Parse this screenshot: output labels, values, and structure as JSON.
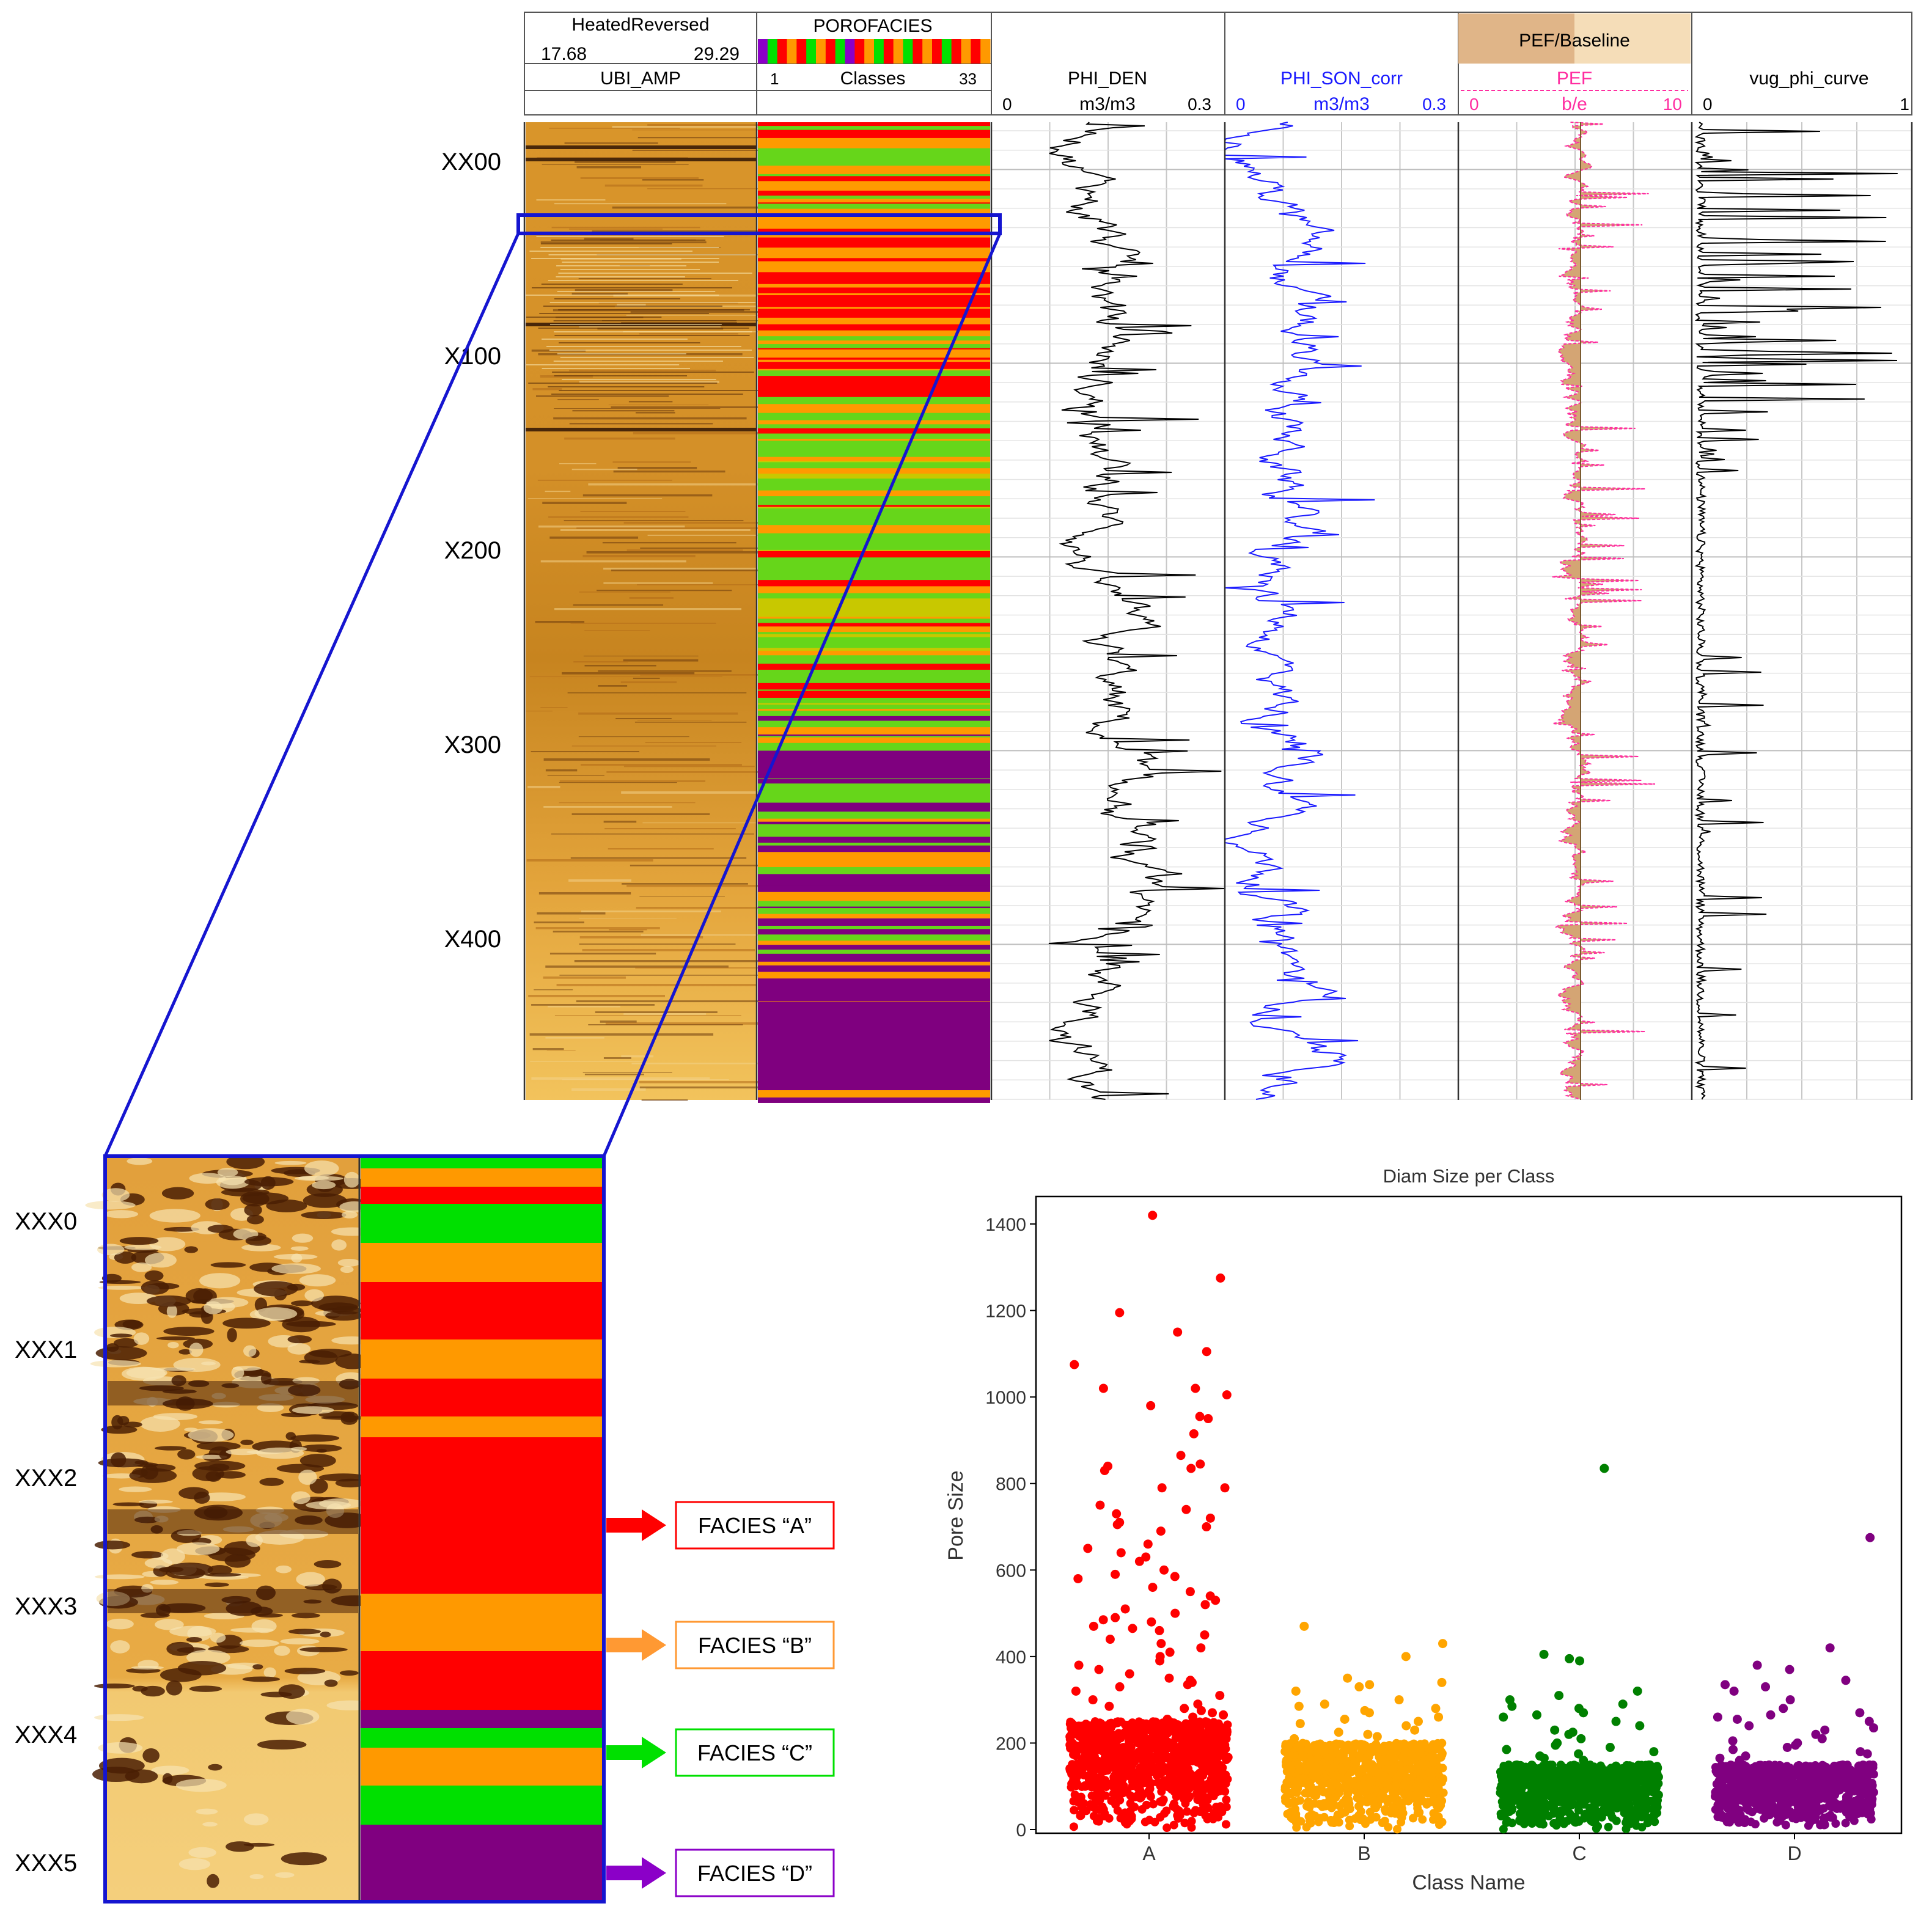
{
  "well_log": {
    "depth_labels": [
      "XX00",
      "X100",
      "X200",
      "X300",
      "X400"
    ],
    "tracks": {
      "image": {
        "title": "HeatedReversed",
        "scale_min": "17.68",
        "scale_max": "29.29",
        "curve": "UBI_AMP"
      },
      "facies": {
        "title": "POROFACIES",
        "scale_min": "1",
        "scale_label": "Classes",
        "scale_max": "33",
        "legend_colors": [
          "#8b00c8",
          "#00e000",
          "#ff0000",
          "#ff9900",
          "#ff0000",
          "#00e000",
          "#ff9900",
          "#ff0000",
          "#00e000",
          "#8b00c8",
          "#ff0000",
          "#ff9900",
          "#00e000",
          "#ff0000",
          "#ff9900",
          "#00e000",
          "#ff0000",
          "#ff9900",
          "#ff0000",
          "#00e000",
          "#ff0000",
          "#ff9900",
          "#ff0000",
          "#ff9900"
        ]
      },
      "phi_den": {
        "curve": "PHI_DEN",
        "scale_min": "0",
        "unit": "m3/m3",
        "scale_max": "0.3",
        "color": "#000000"
      },
      "phi_son": {
        "curve": "PHI_SON_corr",
        "scale_min": "0",
        "unit": "m3/m3",
        "scale_max": "0.3",
        "color": "#1a1aff"
      },
      "pef": {
        "title": "PEF/Baseline",
        "curve": "PEF",
        "scale_min": "0",
        "unit": "b/e",
        "scale_max": "10",
        "color": "#ff2da0",
        "fill": "#d4a574"
      },
      "vug": {
        "curve": "vug_phi_curve",
        "scale_min": "0",
        "scale_max": "1",
        "color": "#000000"
      }
    }
  },
  "zoom": {
    "depth_labels": [
      "XXX0",
      "XXX1",
      "XXX2",
      "XXX3",
      "XXX4",
      "XXX5"
    ],
    "facies_labels": [
      {
        "text": "FACIES “A”",
        "color": "#ff0000"
      },
      {
        "text": "FACIES “B”",
        "color": "#ff9933"
      },
      {
        "text": "FACIES “C”",
        "color": "#00e000"
      },
      {
        "text": "FACIES “D”",
        "color": "#8b00c8"
      }
    ]
  },
  "chart_data": {
    "type": "scatter",
    "title": "Diam Size per Class",
    "xlabel": "Class Name",
    "ylabel": "Pore Size",
    "categories": [
      "A",
      "B",
      "C",
      "D"
    ],
    "ylim": [
      0,
      1450
    ],
    "yticks": [
      0,
      200,
      400,
      600,
      800,
      1000,
      1200,
      1400
    ],
    "grid": false,
    "series": [
      {
        "category": "A",
        "color": "#ff0000",
        "dense_max": 250,
        "values": [
          1420,
          1275,
          1195,
          1150,
          1105,
          1075,
          1020,
          1020,
          1005,
          980,
          955,
          950,
          915,
          865,
          845,
          840,
          835,
          830,
          790,
          790,
          750,
          740,
          730,
          720,
          710,
          705,
          700,
          690,
          660,
          650,
          640,
          630,
          620,
          600,
          590,
          585,
          580,
          560,
          550,
          540,
          530,
          520,
          510,
          500,
          490,
          485,
          480,
          470,
          465,
          460,
          450,
          440,
          430,
          420,
          410,
          400,
          390,
          380,
          370,
          360,
          350,
          345,
          340,
          335,
          330,
          320,
          310,
          300,
          290,
          285,
          280,
          275,
          270,
          265,
          260,
          255
        ]
      },
      {
        "category": "B",
        "color": "#ffa500",
        "dense_max": 200,
        "values": [
          470,
          430,
          400,
          350,
          340,
          335,
          330,
          320,
          300,
          290,
          285,
          280,
          275,
          270,
          260,
          255,
          250,
          245,
          240,
          230,
          225,
          220,
          215,
          210
        ]
      },
      {
        "category": "C",
        "color": "#008000",
        "dense_max": 150,
        "values": [
          835,
          405,
          395,
          390,
          320,
          310,
          300,
          290,
          285,
          280,
          270,
          265,
          260,
          250,
          240,
          230,
          225,
          220,
          210,
          200,
          195,
          190,
          185,
          180,
          175,
          170,
          165,
          160
        ]
      },
      {
        "category": "D",
        "color": "#800080",
        "dense_max": 150,
        "values": [
          675,
          420,
          380,
          370,
          345,
          335,
          330,
          320,
          300,
          280,
          270,
          265,
          260,
          255,
          250,
          240,
          235,
          230,
          220,
          210,
          205,
          200,
          195,
          190,
          185,
          180,
          175,
          170,
          165,
          160
        ]
      }
    ]
  }
}
